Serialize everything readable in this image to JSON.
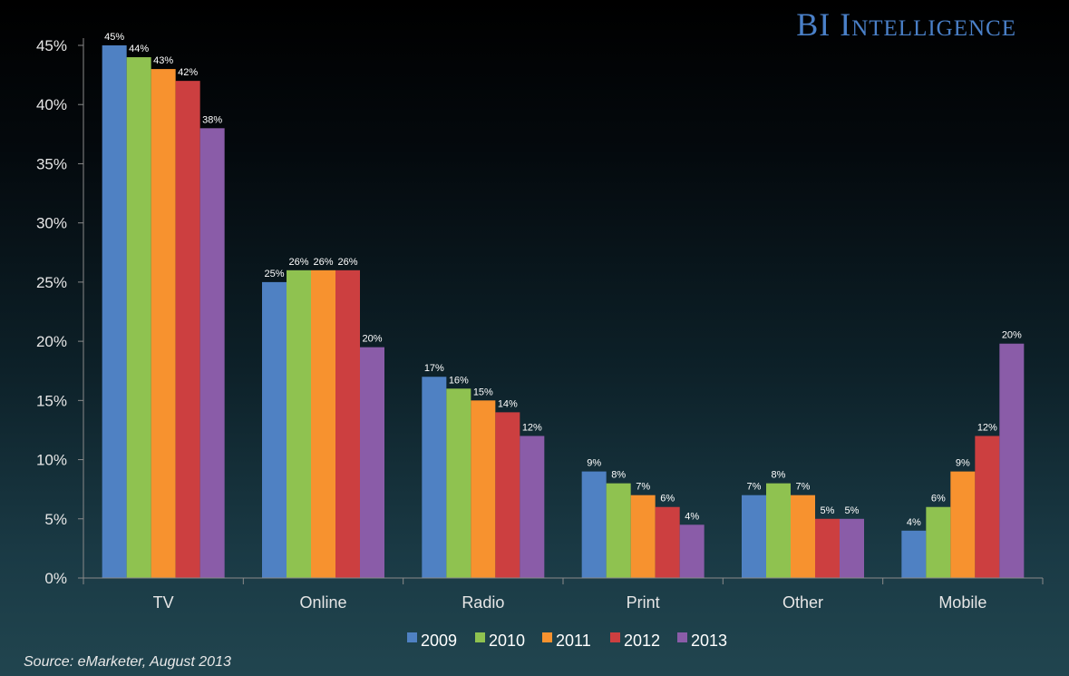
{
  "brand": "BI Intelligence",
  "source": "Source: eMarketer, August 2013",
  "chart_data": {
    "type": "bar",
    "title": "",
    "xlabel": "",
    "ylabel": "",
    "categories": [
      "TV",
      "Online",
      "Radio",
      "Print",
      "Other",
      "Mobile"
    ],
    "ylim": [
      0,
      45
    ],
    "yticks": [
      0,
      5,
      10,
      15,
      20,
      25,
      30,
      35,
      40,
      45
    ],
    "ytick_labels": [
      "0%",
      "5%",
      "10%",
      "15%",
      "20%",
      "25%",
      "30%",
      "35%",
      "40%",
      "45%"
    ],
    "legend_position": "bottom",
    "grid": false,
    "series": [
      {
        "name": "2009",
        "color": "#4f81c3",
        "values": [
          45,
          25,
          17,
          9,
          7,
          4
        ],
        "labels": [
          "45%",
          "25%",
          "17%",
          "9%",
          "7%",
          "4%"
        ]
      },
      {
        "name": "2010",
        "color": "#8fc250",
        "values": [
          44,
          26,
          16,
          8,
          8,
          6
        ],
        "labels": [
          "44%",
          "26%",
          "16%",
          "8%",
          "8%",
          "6%"
        ]
      },
      {
        "name": "2011",
        "color": "#f7922f",
        "values": [
          43,
          26,
          15,
          7,
          7,
          9
        ],
        "labels": [
          "43%",
          "26%",
          "15%",
          "7%",
          "7%",
          "9%"
        ]
      },
      {
        "name": "2012",
        "color": "#cc3f40",
        "values": [
          42,
          26,
          14,
          6,
          5,
          12
        ],
        "labels": [
          "42%",
          "26%",
          "14%",
          "6%",
          "5%",
          "12%"
        ]
      },
      {
        "name": "2013",
        "color": "#8a5ca8",
        "values": [
          38,
          19.5,
          12,
          4.5,
          5,
          19.8
        ],
        "labels": [
          "38%",
          "20%",
          "12%",
          "4%",
          "5%",
          "20%"
        ]
      }
    ]
  }
}
